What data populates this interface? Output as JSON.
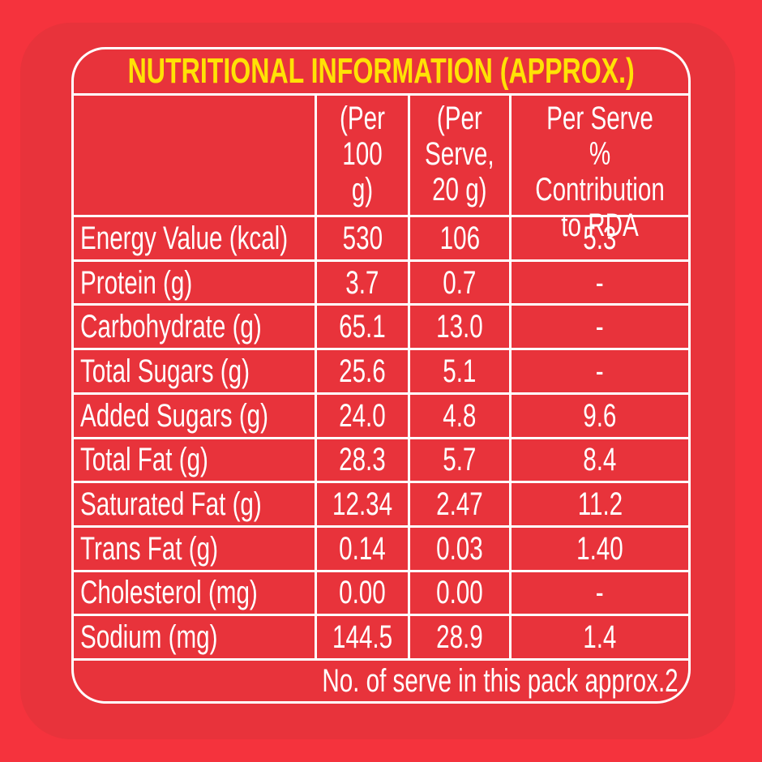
{
  "colors": {
    "bg_outer": "#F5333D",
    "bg_panel": "#E8333B",
    "line": "#FFFFFF",
    "text": "#FFFFFF",
    "title": "#FFE205"
  },
  "label": {
    "title": "NUTRITIONAL INFORMATION (APPROX.)",
    "footer_note": "No. of serve in this pack approx.2"
  },
  "table": {
    "headers": {
      "nutrient": "",
      "per_100g": "(Per\n100 g)",
      "per_serve": "(Per\nServe,\n20 g)",
      "rda": "Per Serve\n% Contribution\nto RDA"
    },
    "rows": [
      {
        "label": "Energy Value (kcal)",
        "per100": "530",
        "serve": "106",
        "rda": "5.3"
      },
      {
        "label": "Protein (g)",
        "per100": "3.7",
        "serve": "0.7",
        "rda": "-"
      },
      {
        "label": "Carbohydrate (g)",
        "per100": "65.1",
        "serve": "13.0",
        "rda": "-"
      },
      {
        "label": "Total Sugars (g)",
        "per100": "25.6",
        "serve": "5.1",
        "rda": "-"
      },
      {
        "label": "Added Sugars (g)",
        "per100": "24.0",
        "serve": "4.8",
        "rda": "9.6"
      },
      {
        "label": "Total Fat (g)",
        "per100": "28.3",
        "serve": "5.7",
        "rda": "8.4"
      },
      {
        "label": "Saturated Fat (g)",
        "per100": "12.34",
        "serve": "2.47",
        "rda": "11.2"
      },
      {
        "label": "Trans Fat (g)",
        "per100": "0.14",
        "serve": "0.03",
        "rda": "1.40"
      },
      {
        "label": "Cholesterol (mg)",
        "per100": "0.00",
        "serve": "0.00",
        "rda": "-"
      },
      {
        "label": "Sodium (mg)",
        "per100": "144.5",
        "serve": "28.9",
        "rda": "1.4"
      }
    ]
  }
}
